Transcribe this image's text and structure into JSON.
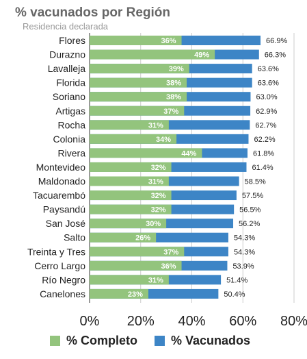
{
  "chart_data": {
    "type": "bar",
    "orientation": "horizontal",
    "stacked": false,
    "title": "% vacunados por Región",
    "subtitle": "Residencia declarada",
    "categories": [
      "Flores",
      "Durazno",
      "Lavalleja",
      "Florida",
      "Soriano",
      "Artigas",
      "Rocha",
      "Colonia",
      "Rivera",
      "Montevideo",
      "Maldonado",
      "Tacuarembó",
      "Paysandú",
      "San José",
      "Salto",
      "Treinta y Tres",
      "Cerro Largo",
      "Río Negro",
      "Canelones"
    ],
    "series": [
      {
        "name": "% Completo",
        "color": "#93c47d",
        "values": [
          36,
          49,
          39,
          38,
          38,
          37,
          31,
          34,
          44,
          32,
          31,
          32,
          32,
          30,
          26,
          37,
          36,
          31,
          23
        ],
        "labels": [
          "36%",
          "49%",
          "39%",
          "38%",
          "38%",
          "37%",
          "31%",
          "34%",
          "44%",
          "32%",
          "31%",
          "32%",
          "32%",
          "30%",
          "26%",
          "37%",
          "36%",
          "31%",
          "23%"
        ]
      },
      {
        "name": "% Vacunados",
        "color": "#3d85c6",
        "values": [
          66.9,
          66.3,
          63.6,
          63.6,
          63.0,
          62.9,
          62.7,
          62.2,
          61.8,
          61.4,
          58.5,
          57.5,
          56.5,
          56.2,
          54.3,
          54.3,
          53.9,
          51.4,
          50.4
        ],
        "labels": [
          "66.9%",
          "66.3%",
          "63.6%",
          "63.6%",
          "63.0%",
          "62.9%",
          "62.7%",
          "62.2%",
          "61.8%",
          "61.4%",
          "58.5%",
          "57.5%",
          "56.5%",
          "56.2%",
          "54.3%",
          "54.3%",
          "53.9%",
          "51.4%",
          "50.4%"
        ]
      }
    ],
    "xlim": [
      0,
      80
    ],
    "x_ticks": [
      0,
      20,
      40,
      60,
      80
    ],
    "x_tick_labels": [
      "0%",
      "20%",
      "40%",
      "60%",
      "80%"
    ],
    "grid": "vertical",
    "legend_position": "bottom",
    "gridline_color": "#cccccc",
    "text_color": "#222222"
  }
}
